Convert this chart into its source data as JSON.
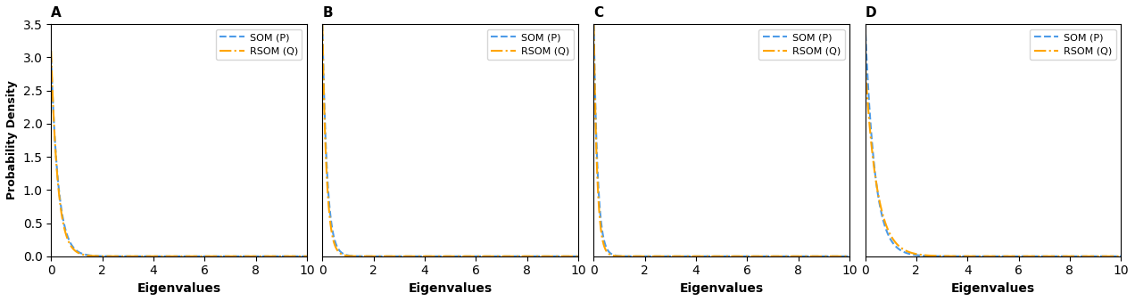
{
  "panels": [
    "A",
    "B",
    "C",
    "D"
  ],
  "som_color": "#4C9BE8",
  "rsom_color": "#FFA500",
  "som_label": "SOM (P)",
  "rsom_label": "RSOM (Q)",
  "xlabel": "Eigenvalues",
  "ylabel": "Probability Density",
  "xlim": [
    0,
    10
  ],
  "xticks": [
    0,
    2,
    4,
    6,
    8,
    10
  ],
  "panel_A": {
    "ylim": [
      0,
      3.5
    ],
    "yticks": [
      0.0,
      0.5,
      1.0,
      1.5,
      2.0,
      2.5,
      3.0,
      3.5
    ],
    "som_scale": 0.28,
    "rsom_scale": 0.26,
    "som_peak": 3.0,
    "rsom_peak": 3.1,
    "show_yticks": true
  },
  "panel_B": {
    "ylim": [
      0,
      30
    ],
    "som_scale": 0.18,
    "rsom_scale": 0.16,
    "som_peak": 30,
    "rsom_peak": 30,
    "show_yticks": false
  },
  "panel_C": {
    "ylim": [
      0,
      30
    ],
    "som_scale": 0.15,
    "rsom_scale": 0.13,
    "som_peak": 30,
    "rsom_peak": 30,
    "show_yticks": false
  },
  "panel_D": {
    "ylim": [
      0,
      30
    ],
    "som_scale": 0.38,
    "rsom_scale": 0.45,
    "som_peak": 30,
    "rsom_peak": 25,
    "show_yticks": false
  }
}
